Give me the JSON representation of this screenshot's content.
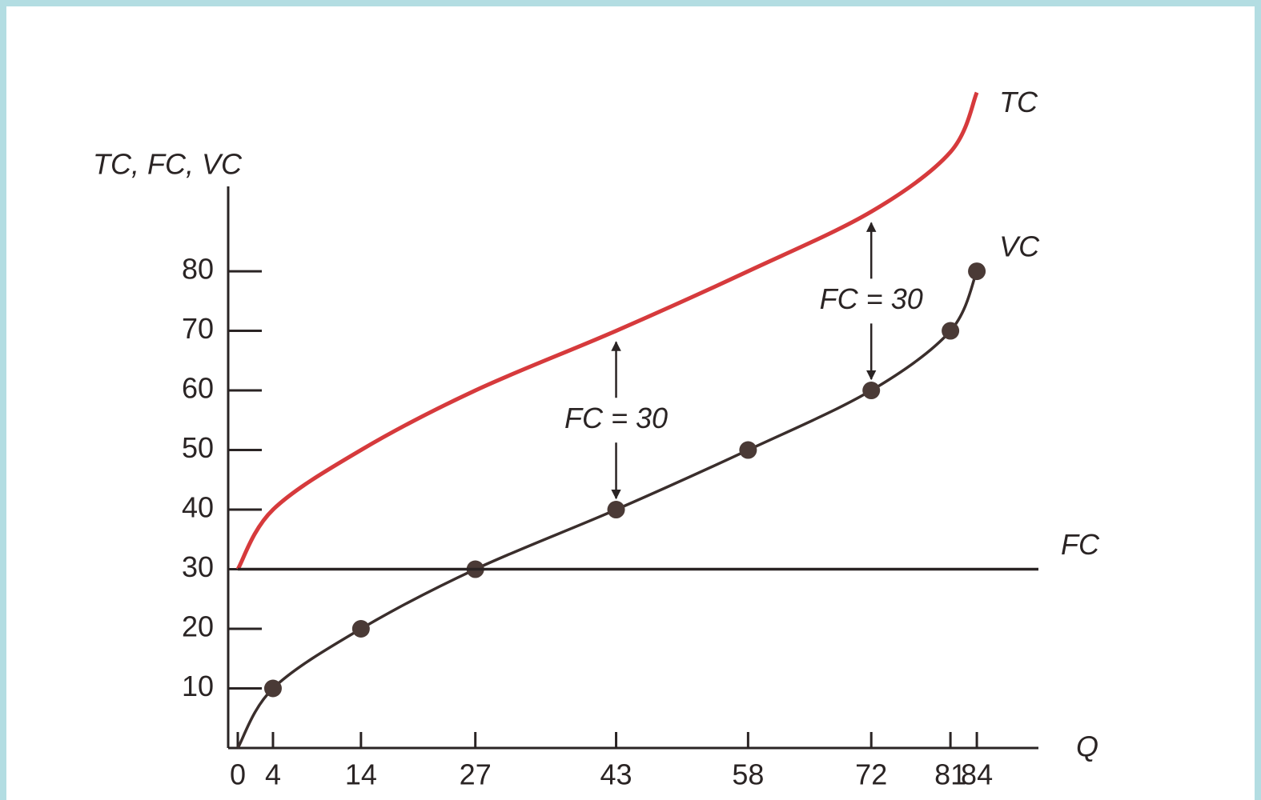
{
  "chart_data": {
    "type": "line",
    "y_axis_label": "TC, FC, VC",
    "x_axis_label": "Q",
    "xlim": [
      0,
      91
    ],
    "ylim": [
      0,
      118
    ],
    "xticks": [
      0,
      4,
      14,
      27,
      43,
      58,
      72,
      81,
      84
    ],
    "yticks": [
      10,
      20,
      30,
      40,
      50,
      60,
      70,
      80
    ],
    "series": [
      {
        "name": "TC",
        "color": "#d63a3c",
        "x": [
          0,
          4,
          14,
          27,
          43,
          58,
          72,
          81,
          84
        ],
        "values": [
          30,
          40,
          50,
          60,
          70,
          80,
          90,
          100,
          110
        ]
      },
      {
        "name": "VC",
        "color": "#3a2e2c",
        "markers": true,
        "x": [
          0,
          4,
          14,
          27,
          43,
          58,
          72,
          81,
          84
        ],
        "values": [
          0,
          10,
          20,
          30,
          40,
          50,
          60,
          70,
          80
        ]
      },
      {
        "name": "FC",
        "color": "#2a2424",
        "x": [
          0,
          91
        ],
        "values": [
          30,
          30
        ]
      }
    ],
    "annotations": [
      {
        "text": "FC = 30",
        "x": 43,
        "range": [
          40,
          70
        ]
      },
      {
        "text": "FC = 30",
        "x": 72,
        "range": [
          60,
          90
        ]
      }
    ]
  }
}
